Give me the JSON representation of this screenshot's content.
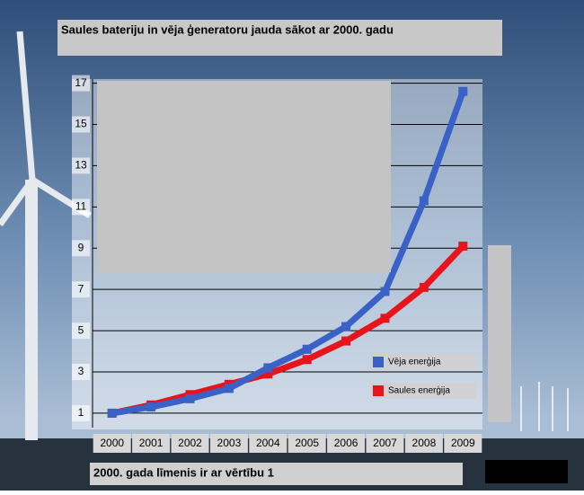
{
  "chart_data": {
    "type": "line",
    "title": "Saules bateriju in vēja ģeneratoru jauda sākot ar 2000. gadu",
    "note": "2000. gada līmenis ir ar vērtību 1",
    "categories": [
      "2000",
      "2001",
      "2002",
      "2003",
      "2004",
      "2005",
      "2006",
      "2007",
      "2008",
      "2009"
    ],
    "series": [
      {
        "name": "Vēja enerģija",
        "color": "#3a62c6",
        "values": [
          1.0,
          1.3,
          1.7,
          2.2,
          3.2,
          4.1,
          5.2,
          6.9,
          11.3,
          16.6
        ]
      },
      {
        "name": "Saules enerģija",
        "color": "#e8141c",
        "values": [
          1.0,
          1.4,
          1.9,
          2.4,
          2.9,
          3.6,
          4.5,
          5.6,
          7.1,
          9.1
        ]
      }
    ],
    "ylim": [
      0.3,
      17.2
    ],
    "yticks": [
      1,
      3,
      5,
      7,
      9,
      11,
      13,
      15,
      17
    ],
    "grid": true
  }
}
